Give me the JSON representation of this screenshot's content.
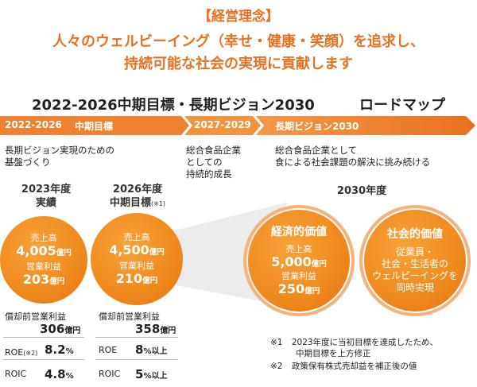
{
  "header": {
    "philosophy": "【経営理念】",
    "line1": "人々のウェルビーイング（幸せ・健康・笑顔）を追求し、",
    "line2": "持続可能な社会の実現に貢献します"
  },
  "roadmap": {
    "title": "2022-2026中期目標・長期ビジョン2030",
    "tag": "ロードマップ"
  },
  "timeline": {
    "seg1_years": "2022-2026",
    "seg1_label": "中期目標",
    "seg2_years": "2027-2029",
    "seg3_label": "長期ビジョン2030"
  },
  "phase1": {
    "text1": "長期ビジョン実現のための",
    "text2": "基盤づくり"
  },
  "phase2": {
    "text1": "総合食品企業",
    "text2": "としての",
    "text3": "持続的成長"
  },
  "phase3": {
    "text1": "総合食品企業として",
    "text2": "食による社会課題の解決に挑み続ける"
  },
  "col2023": {
    "head1": "2023年度",
    "head2": "実績",
    "sales_label": "売上高",
    "sales_value": "4,005",
    "sales_unit": "億円",
    "op_label": "営業利益",
    "op_value": "203",
    "op_unit": "億円",
    "ebitda_label": "償却前営業利益",
    "ebitda_value": "306",
    "ebitda_unit": "億円",
    "roe_label": "ROE",
    "roe_note": "(※2)",
    "roe_value": "8.2",
    "roe_unit": "%",
    "roic_label": "ROIC",
    "roic_value": "4.8",
    "roic_unit": "%"
  },
  "col2026": {
    "head1": "2026年度",
    "head2": "中期目標",
    "head2_note": "(※1)",
    "sales_label": "売上高",
    "sales_value": "4,500",
    "sales_unit": "億円",
    "op_label": "営業利益",
    "op_value": "210",
    "op_unit": "億円",
    "ebitda_label": "償却前営業利益",
    "ebitda_value": "358",
    "ebitda_unit": "億円",
    "roe_label": "ROE",
    "roe_value": "8",
    "roe_unit": "%以上",
    "roic_label": "ROIC",
    "roic_value": "5",
    "roic_unit": "%以上"
  },
  "col2030": {
    "head": "2030年度",
    "econ_title": "経済的価値",
    "sales_label": "売上高",
    "sales_value": "5,000",
    "sales_unit": "億円",
    "op_label": "営業利益",
    "op_value": "250",
    "op_unit": "億円",
    "social_title": "社会的価値",
    "social_l1": "従業員・",
    "social_l2": "社会・生活者の",
    "social_l3": "ウェルビーイングを",
    "social_l4": "同時実現"
  },
  "notes": {
    "n1_mark": "※1",
    "n1_text1": "2023年度に当初目標を達成したため、",
    "n1_text2": "中期目標を上方修正",
    "n2_mark": "※2",
    "n2_text": "政策保有株式売却益を補正後の値"
  },
  "colors": {
    "accent": "#e8711f",
    "band_light": "#f3a35a",
    "band_dark": "#e8711f"
  }
}
